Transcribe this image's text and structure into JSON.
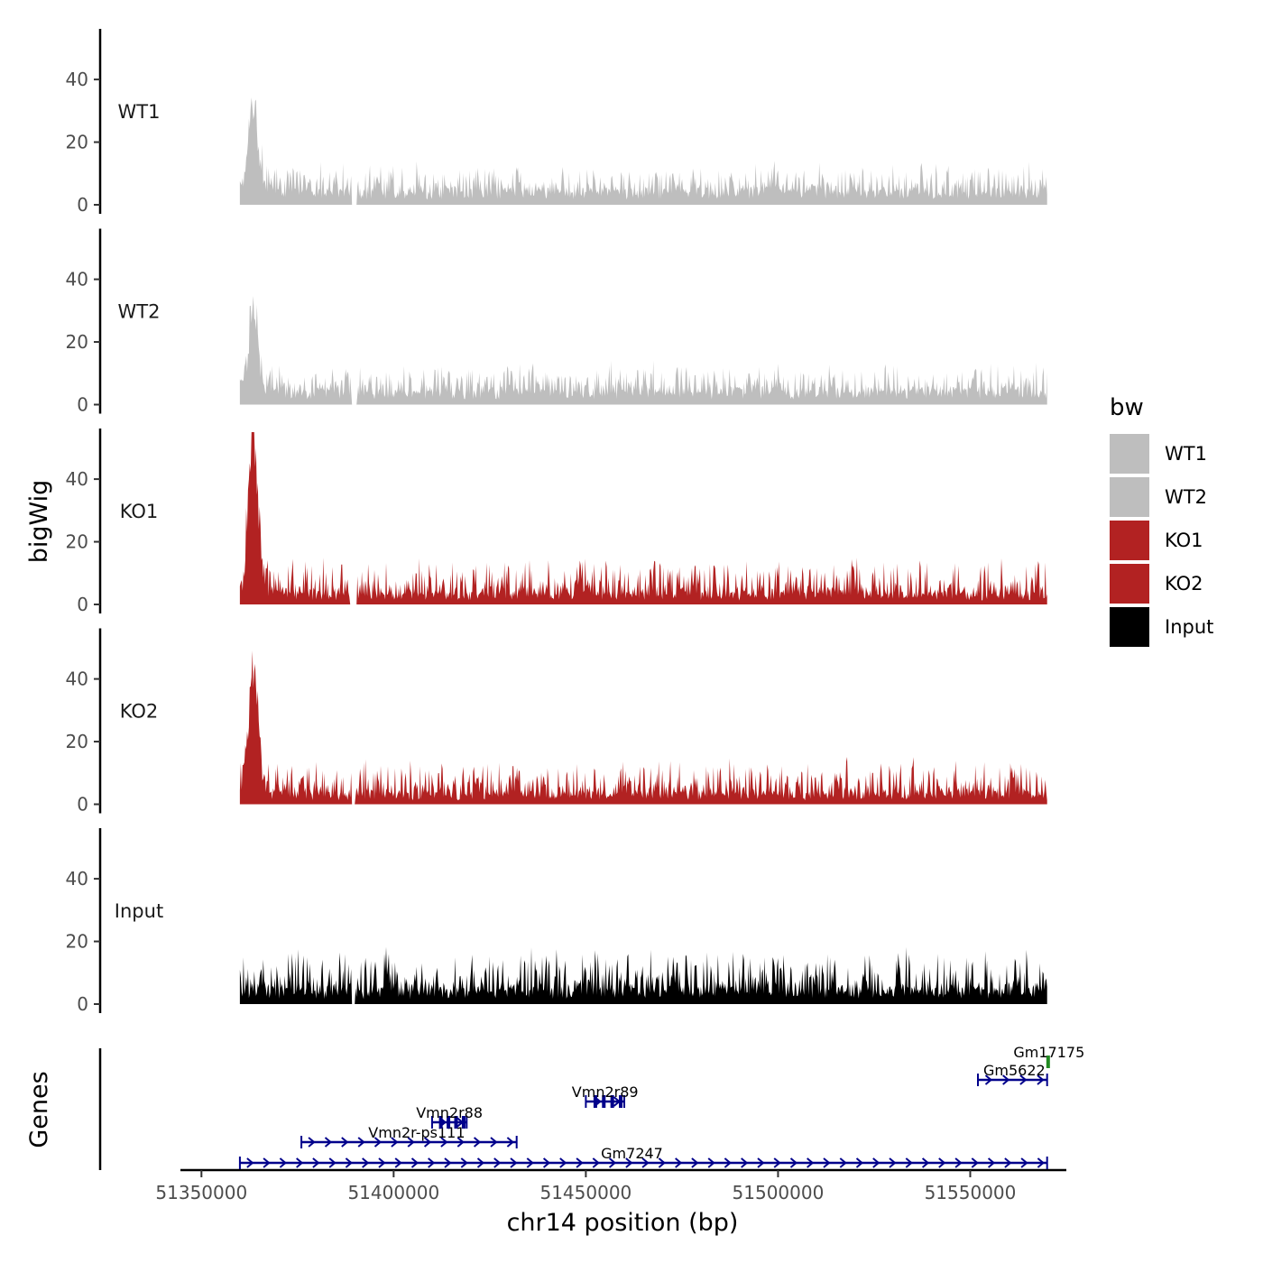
{
  "chart_data": {
    "type": "area",
    "xlabel": "chr14 position (bp)",
    "ylabel": "bigWig",
    "gene_axis_label": "Genes",
    "xlim": [
      51345000,
      51575000
    ],
    "region": [
      51360000,
      51570000
    ],
    "x_ticks": [
      51350000,
      51400000,
      51450000,
      51500000,
      51550000
    ],
    "x_tick_labels": [
      "51350000",
      "51400000",
      "51450000",
      "51500000",
      "51550000"
    ],
    "ylim": [
      0,
      55
    ],
    "y_ticks": [
      0,
      20,
      40
    ],
    "y_tick_labels": [
      "0",
      "20",
      "40"
    ],
    "tracks": [
      {
        "name": "WT1",
        "color": "#BEBEBE",
        "baseline": 4,
        "noise": 4,
        "peak": 28,
        "peak_pos": 51363500,
        "gap": [
          51389000,
          51390500
        ]
      },
      {
        "name": "WT2",
        "color": "#BEBEBE",
        "baseline": 4,
        "noise": 4,
        "peak": 26,
        "peak_pos": 51363500,
        "gap": [
          51389000,
          51390500
        ]
      },
      {
        "name": "KO1",
        "color": "#B22222",
        "baseline": 3,
        "noise": 5,
        "peak": 53,
        "peak_pos": 51363500,
        "gap": [
          51388500,
          51390500
        ]
      },
      {
        "name": "KO2",
        "color": "#B22222",
        "baseline": 3,
        "noise": 5,
        "peak": 44,
        "peak_pos": 51363500,
        "gap": [
          51389000,
          51390000
        ]
      },
      {
        "name": "Input",
        "color": "#000000",
        "baseline": 4,
        "noise": 6,
        "peak": 0,
        "peak_pos": 51363500,
        "gap": [
          51389000,
          51390000
        ]
      }
    ],
    "legend": {
      "title": "bw",
      "entries": [
        {
          "label": "WT1",
          "color": "#BEBEBE"
        },
        {
          "label": "WT2",
          "color": "#BEBEBE"
        },
        {
          "label": "KO1",
          "color": "#B22222"
        },
        {
          "label": "KO2",
          "color": "#B22222"
        },
        {
          "label": "Input",
          "color": "#000000"
        }
      ]
    },
    "genes": [
      {
        "name": "Gm7247",
        "start": 51360000,
        "end": 51570000,
        "strand": "+",
        "row": 0,
        "color": "#00008B"
      },
      {
        "name": "Vmn2r-ps111",
        "start": 51376000,
        "end": 51432000,
        "strand": "+",
        "row": 1,
        "color": "#00008B"
      },
      {
        "name": "Vmn2r88",
        "start": 51410000,
        "end": 51419000,
        "strand": "+",
        "row": 2,
        "color": "#00008B"
      },
      {
        "name": "Vmn2r89",
        "start": 51450000,
        "end": 51460000,
        "strand": "+",
        "row": 3,
        "color": "#00008B"
      },
      {
        "name": "Gm5622",
        "start": 51552000,
        "end": 51570000,
        "strand": "+",
        "row": 4,
        "color": "#00008B"
      },
      {
        "name": "Gm17175",
        "start": 51569000,
        "end": 51570500,
        "strand": "+",
        "row": 5,
        "color": "#228B22"
      }
    ]
  }
}
